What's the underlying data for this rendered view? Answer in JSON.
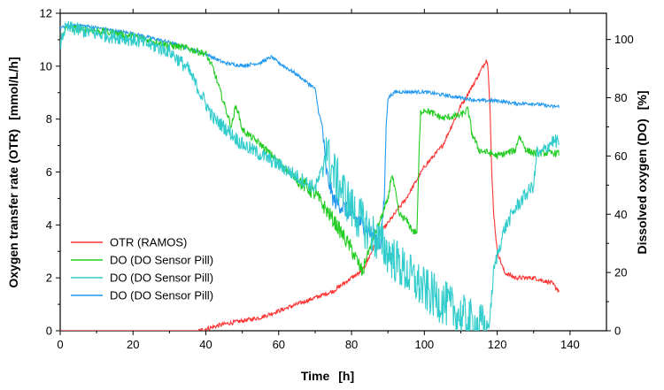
{
  "chart_data": {
    "type": "line",
    "title": "",
    "xlabel": "Time",
    "xlabel_unit": "[h]",
    "ylabel_left": "Oxygen transfer rate (OTR)",
    "ylabel_left_unit": "[mmol/L/h]",
    "ylabel_right": "Dissolved oxygen (DO)",
    "ylabel_right_unit": "[%]",
    "xlim": [
      0,
      150
    ],
    "ylim_left": [
      0,
      12
    ],
    "ylim_right": [
      0,
      109
    ],
    "xticks": [
      "0",
      "20",
      "40",
      "60",
      "80",
      "100",
      "120",
      "140"
    ],
    "xtick_values": [
      0,
      20,
      40,
      60,
      80,
      100,
      120,
      140
    ],
    "yticks_left": [
      "0",
      "2",
      "4",
      "6",
      "8",
      "10",
      "12"
    ],
    "ytick_values_left": [
      0,
      2,
      4,
      6,
      8,
      10,
      12
    ],
    "yticks_right": [
      "0",
      "20",
      "40",
      "60",
      "80",
      "100"
    ],
    "ytick_values_right": [
      0,
      20,
      40,
      60,
      80,
      100
    ],
    "legend_position": "bottom-left",
    "series": [
      {
        "name": "OTR (RAMOS)",
        "color": "#ff3333",
        "axis": "left",
        "noise": 0.08,
        "x": [
          0,
          38,
          45,
          55,
          65,
          75,
          80,
          83,
          88,
          95,
          100,
          105,
          110,
          113,
          115,
          116.5,
          117,
          117.5,
          118,
          118.5,
          119,
          120,
          121,
          122,
          125,
          130,
          135,
          137
        ],
        "y": [
          0,
          0,
          0.25,
          0.5,
          1.0,
          1.5,
          2.0,
          2.25,
          3.7,
          5.0,
          6.2,
          7.0,
          8.5,
          9.2,
          9.7,
          10.1,
          10.25,
          10.0,
          8.5,
          6.0,
          4.5,
          3.0,
          2.6,
          2.2,
          2.0,
          2.0,
          1.8,
          1.5
        ]
      },
      {
        "name": "DO (DO Sensor Pill)",
        "color": "#22cc22",
        "axis": "right",
        "noise": 1.2,
        "x": [
          0,
          1,
          2,
          10,
          20,
          30,
          35,
          40,
          42,
          45,
          47,
          48,
          48.5,
          50,
          55,
          60,
          65,
          70,
          75,
          80,
          83,
          83.5,
          84,
          90,
          91,
          92,
          93,
          95,
          97,
          98,
          98.5,
          99,
          100,
          105,
          110,
          112,
          113,
          115,
          118,
          120,
          125,
          126,
          128,
          130,
          135,
          137
        ],
        "y": [
          98,
          103,
          104,
          103,
          101,
          98,
          97,
          95,
          90,
          78,
          70,
          76,
          77,
          69,
          64,
          58,
          52,
          47,
          38,
          28,
          20,
          22,
          25,
          45,
          54,
          48,
          40,
          38,
          34,
          34,
          60,
          75,
          76,
          73,
          74,
          76,
          68,
          62,
          61,
          60,
          62,
          67,
          62,
          61,
          61,
          61
        ]
      },
      {
        "name": "DO (DO Sensor Pill)",
        "color": "#33cccc",
        "axis": "right",
        "noise": 2.5,
        "x": [
          0,
          1,
          2,
          10,
          20,
          30,
          35,
          40,
          42,
          45,
          50,
          60,
          70,
          72,
          73,
          74,
          80,
          85,
          90,
          95,
          100,
          105,
          110,
          113,
          114,
          116,
          117,
          117.5,
          118,
          118.5,
          119,
          120,
          122,
          125,
          128,
          130,
          131,
          131.5,
          135,
          137
        ],
        "y": [
          98,
          103,
          104,
          102,
          100,
          96,
          90,
          78,
          73,
          70,
          64,
          57,
          49,
          55,
          65,
          57,
          42,
          34,
          27,
          20,
          14,
          10,
          5,
          3,
          2,
          1.5,
          1.5,
          1.5,
          4,
          12,
          20,
          26,
          35,
          42,
          47,
          50,
          62,
          60,
          65,
          65
        ]
      },
      {
        "name": "DO (DO Sensor Pill)",
        "color": "#2299ee",
        "axis": "right",
        "noise": 0.6,
        "x": [
          0,
          5,
          10,
          20,
          30,
          35,
          40,
          45,
          50,
          55,
          58,
          60,
          65,
          70,
          71,
          72,
          73,
          75,
          80,
          85,
          87,
          88,
          89,
          89.5,
          90,
          92,
          95,
          100,
          105,
          110,
          115,
          120,
          125,
          130,
          135,
          137
        ],
        "y": [
          104,
          105,
          104,
          102,
          99,
          97,
          95,
          92,
          91,
          92,
          94,
          92,
          88,
          83,
          75,
          70,
          55,
          45,
          40,
          34,
          31,
          30,
          45,
          70,
          80,
          82,
          82,
          82,
          81,
          80,
          79,
          79,
          78,
          78,
          77,
          77
        ]
      }
    ]
  }
}
